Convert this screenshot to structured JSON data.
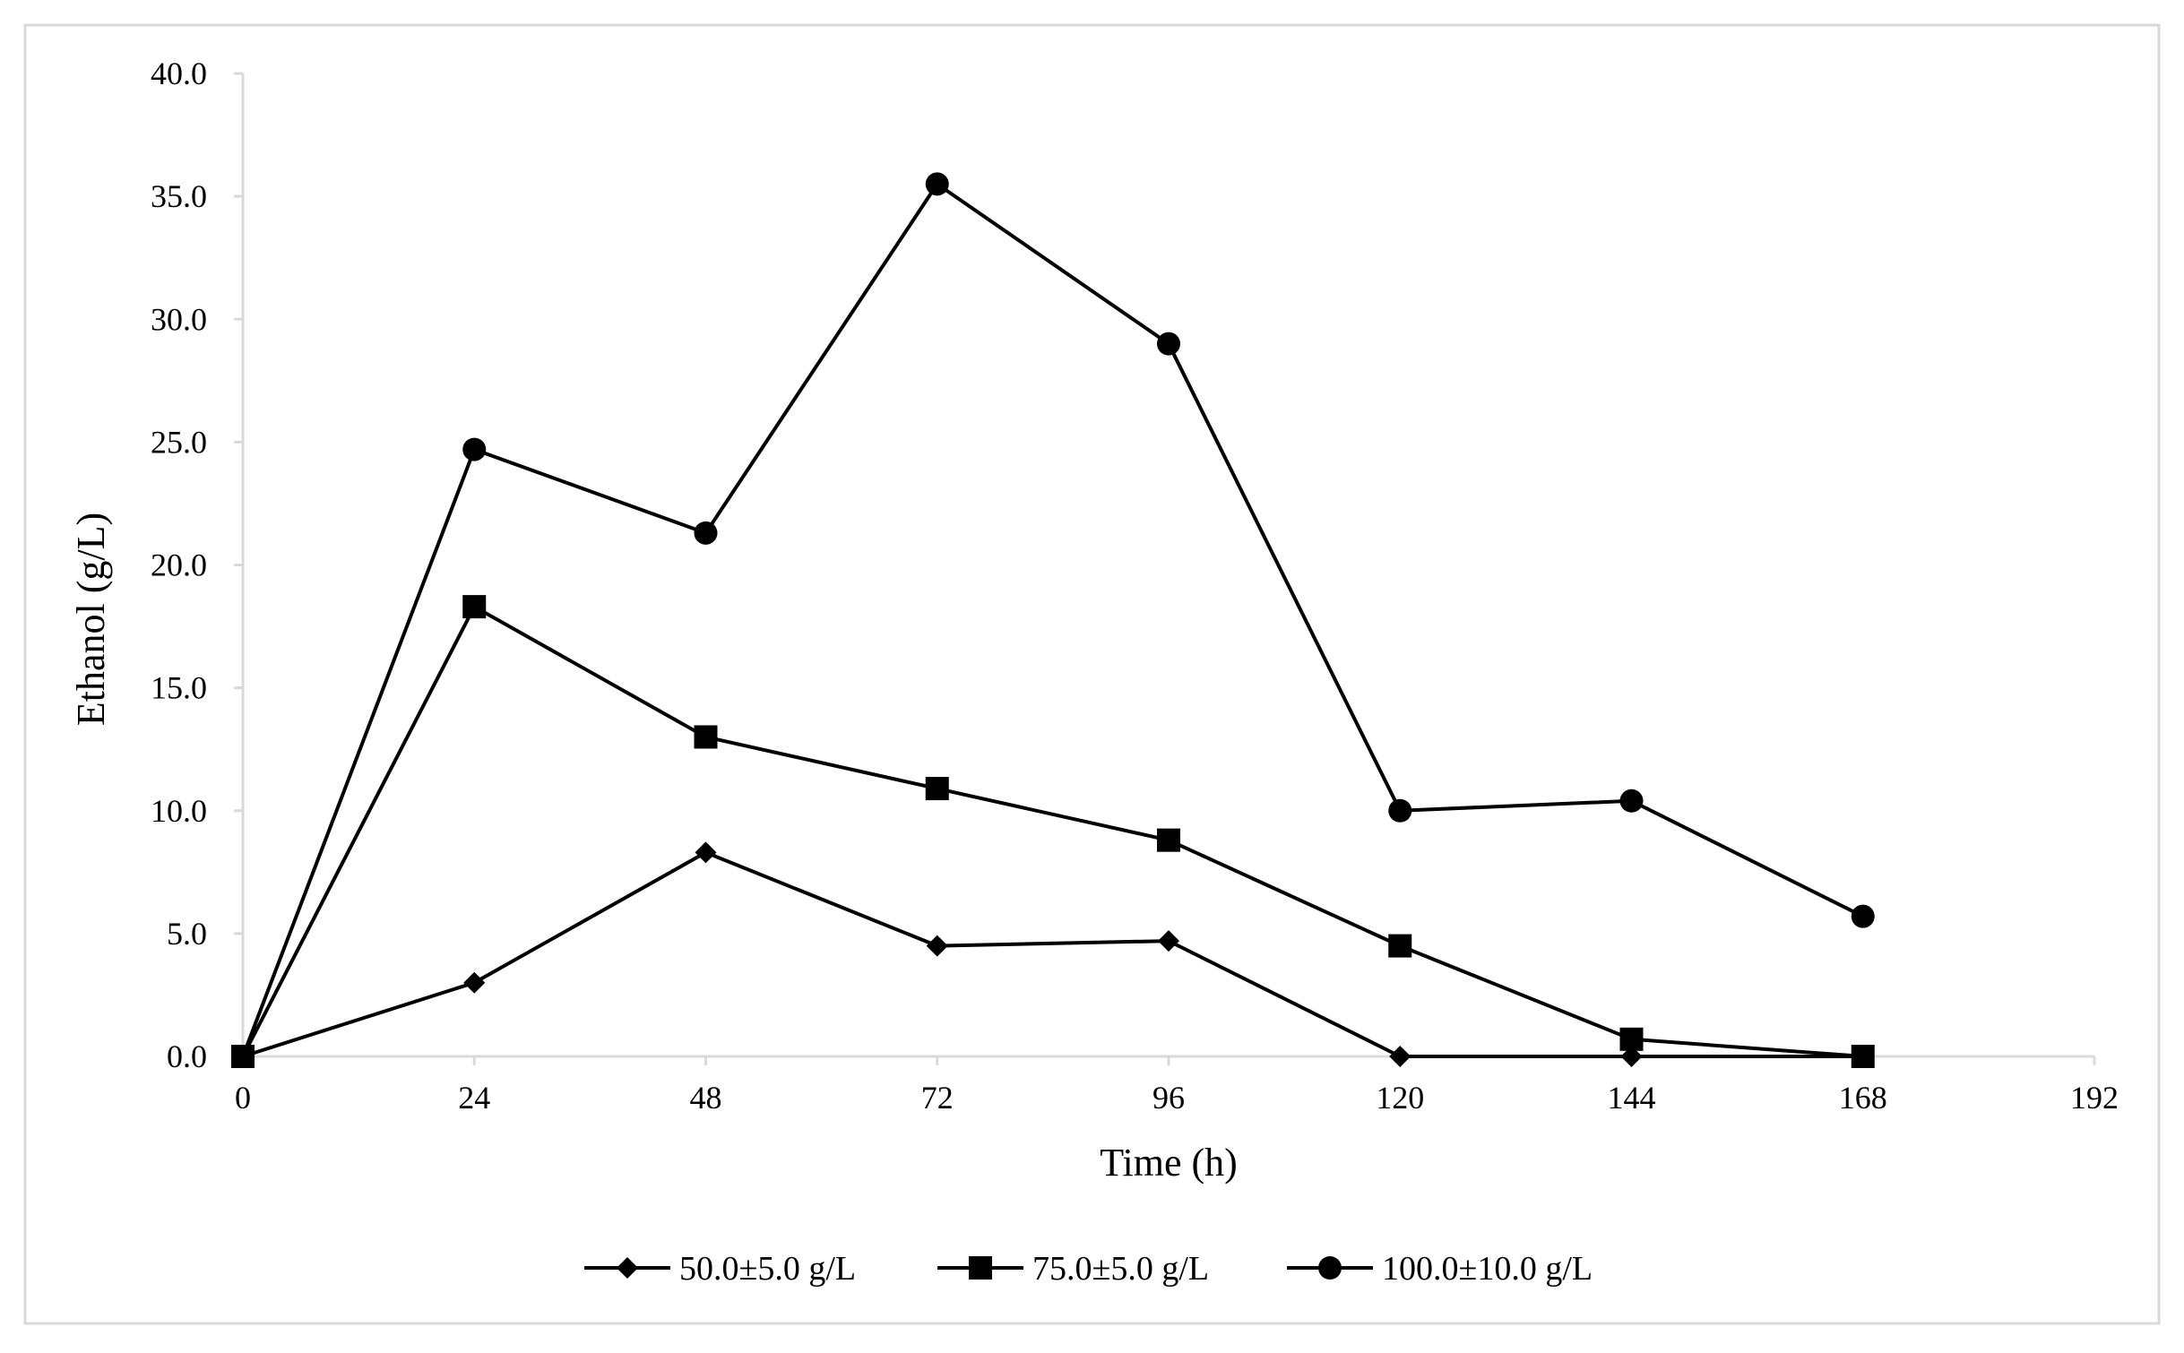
{
  "chart_data": {
    "type": "line",
    "title": "",
    "xlabel": "Time (h)",
    "ylabel": "Ethanol (g/L)",
    "xlim": [
      0,
      192
    ],
    "ylim": [
      0,
      40
    ],
    "xticks": [
      "0",
      "24",
      "48",
      "72",
      "96",
      "120",
      "144",
      "168",
      "192"
    ],
    "yticks": [
      "0.0",
      "5.0",
      "10.0",
      "15.0",
      "20.0",
      "25.0",
      "30.0",
      "35.0",
      "40.0"
    ],
    "grid": false,
    "legend_position": "bottom",
    "x": [
      0,
      24,
      48,
      72,
      96,
      120,
      144,
      168
    ],
    "series": [
      {
        "name": "50.0±5.0 g/L",
        "marker": "diamond",
        "values": [
          0.0,
          3.0,
          8.3,
          4.5,
          4.7,
          0.0,
          0.0,
          0.0
        ]
      },
      {
        "name": "75.0±5.0 g/L",
        "marker": "square",
        "values": [
          0.0,
          18.3,
          13.0,
          10.9,
          8.8,
          4.5,
          0.7,
          0.0
        ]
      },
      {
        "name": "100.0±10.0 g/L",
        "marker": "circle",
        "values": [
          0.0,
          24.7,
          21.3,
          35.5,
          29.0,
          10.0,
          10.4,
          5.7
        ]
      }
    ],
    "colors": {
      "line": "#000000",
      "axis": "#d9d9d9",
      "border": "#d9d9d9"
    }
  }
}
